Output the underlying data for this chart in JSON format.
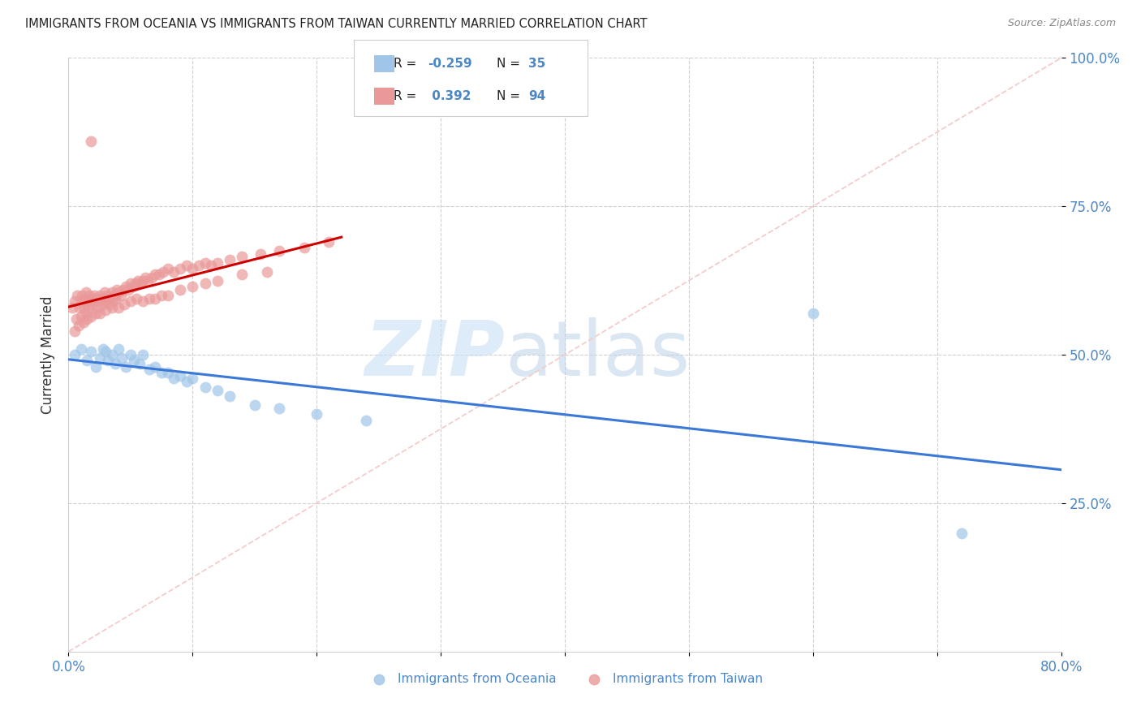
{
  "title": "IMMIGRANTS FROM OCEANIA VS IMMIGRANTS FROM TAIWAN CURRENTLY MARRIED CORRELATION CHART",
  "source": "Source: ZipAtlas.com",
  "ylabel": "Currently Married",
  "legend_label1": "Immigrants from Oceania",
  "legend_label2": "Immigrants from Taiwan",
  "blue_color": "#9fc5e8",
  "pink_color": "#ea9999",
  "blue_line_color": "#3c78d8",
  "pink_line_color": "#cc0000",
  "dashed_line_color": "#f4cccc",
  "watermark_zip": "ZIP",
  "watermark_atlas": "atlas",
  "xmin": 0.0,
  "xmax": 0.8,
  "ymin": 0.0,
  "ymax": 1.0,
  "oceania_x": [
    0.005,
    0.01,
    0.015,
    0.018,
    0.022,
    0.025,
    0.028,
    0.03,
    0.032,
    0.035,
    0.038,
    0.04,
    0.043,
    0.046,
    0.05,
    0.053,
    0.057,
    0.06,
    0.065,
    0.07,
    0.075,
    0.08,
    0.085,
    0.09,
    0.095,
    0.1,
    0.11,
    0.12,
    0.13,
    0.15,
    0.17,
    0.2,
    0.24,
    0.6,
    0.72
  ],
  "oceania_y": [
    0.5,
    0.51,
    0.49,
    0.505,
    0.48,
    0.495,
    0.51,
    0.505,
    0.49,
    0.5,
    0.485,
    0.51,
    0.495,
    0.48,
    0.5,
    0.49,
    0.485,
    0.5,
    0.475,
    0.48,
    0.47,
    0.47,
    0.46,
    0.465,
    0.455,
    0.46,
    0.445,
    0.44,
    0.43,
    0.415,
    0.41,
    0.4,
    0.39,
    0.57,
    0.2
  ],
  "taiwan_x": [
    0.003,
    0.005,
    0.007,
    0.009,
    0.01,
    0.011,
    0.012,
    0.013,
    0.014,
    0.015,
    0.016,
    0.017,
    0.018,
    0.019,
    0.02,
    0.021,
    0.022,
    0.023,
    0.024,
    0.025,
    0.026,
    0.027,
    0.028,
    0.029,
    0.03,
    0.031,
    0.032,
    0.033,
    0.034,
    0.035,
    0.036,
    0.037,
    0.038,
    0.039,
    0.04,
    0.042,
    0.044,
    0.046,
    0.048,
    0.05,
    0.052,
    0.054,
    0.056,
    0.058,
    0.06,
    0.062,
    0.064,
    0.067,
    0.07,
    0.073,
    0.076,
    0.08,
    0.085,
    0.09,
    0.095,
    0.1,
    0.105,
    0.11,
    0.115,
    0.12,
    0.13,
    0.14,
    0.155,
    0.17,
    0.19,
    0.21,
    0.005,
    0.008,
    0.012,
    0.015,
    0.018,
    0.022,
    0.025,
    0.03,
    0.035,
    0.04,
    0.045,
    0.05,
    0.055,
    0.06,
    0.065,
    0.07,
    0.075,
    0.08,
    0.09,
    0.1,
    0.11,
    0.12,
    0.14,
    0.16,
    0.006,
    0.01,
    0.014,
    0.018
  ],
  "taiwan_y": [
    0.58,
    0.59,
    0.6,
    0.58,
    0.59,
    0.6,
    0.58,
    0.595,
    0.605,
    0.59,
    0.58,
    0.6,
    0.595,
    0.585,
    0.59,
    0.6,
    0.595,
    0.58,
    0.59,
    0.6,
    0.595,
    0.585,
    0.595,
    0.605,
    0.59,
    0.6,
    0.595,
    0.585,
    0.595,
    0.605,
    0.59,
    0.6,
    0.595,
    0.61,
    0.605,
    0.6,
    0.61,
    0.615,
    0.61,
    0.62,
    0.615,
    0.62,
    0.625,
    0.62,
    0.625,
    0.63,
    0.625,
    0.63,
    0.635,
    0.635,
    0.64,
    0.645,
    0.64,
    0.645,
    0.65,
    0.645,
    0.65,
    0.655,
    0.65,
    0.655,
    0.66,
    0.665,
    0.67,
    0.675,
    0.68,
    0.69,
    0.54,
    0.55,
    0.555,
    0.56,
    0.565,
    0.57,
    0.57,
    0.575,
    0.58,
    0.58,
    0.585,
    0.59,
    0.595,
    0.59,
    0.595,
    0.595,
    0.6,
    0.6,
    0.61,
    0.615,
    0.62,
    0.625,
    0.635,
    0.64,
    0.56,
    0.565,
    0.57,
    0.86
  ]
}
